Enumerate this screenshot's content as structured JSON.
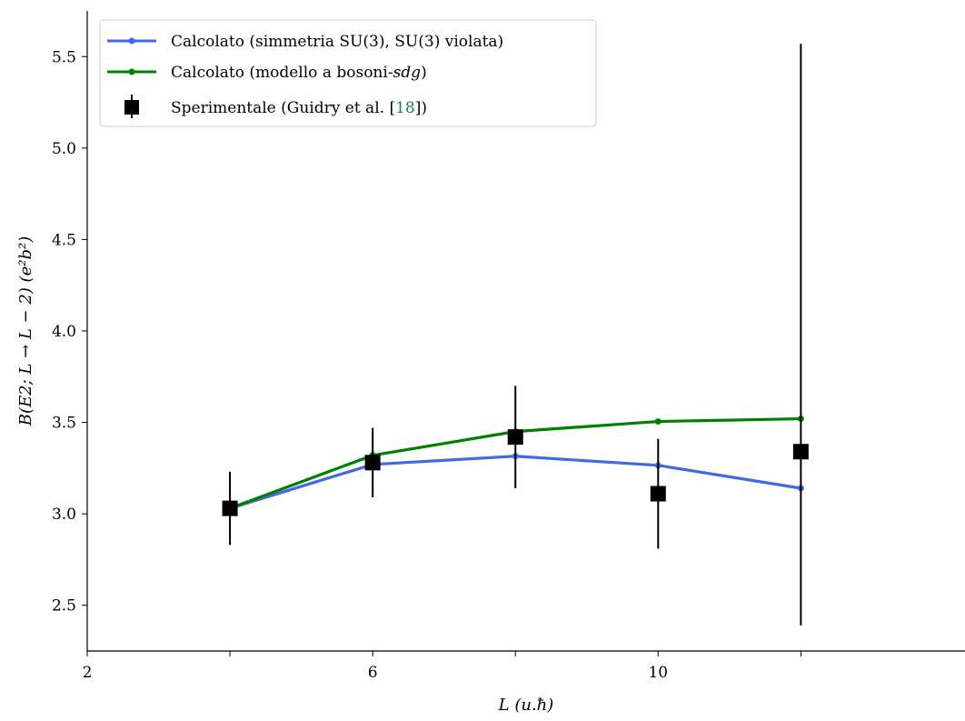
{
  "chart_data": {
    "type": "line",
    "xlabel": "L (u.ħ)",
    "ylabel": "B(E2; L → L − 2) (e²b²)",
    "xlim": [
      2,
      14.3
    ],
    "ylim": [
      2.25,
      5.75
    ],
    "x_ticks": [
      2,
      4,
      6,
      8,
      10,
      12
    ],
    "x_tick_labels": [
      "2",
      "",
      "6",
      "",
      "10",
      ""
    ],
    "y_ticks": [
      2.5,
      3.0,
      3.5,
      4.0,
      4.5,
      5.0,
      5.5
    ],
    "y_tick_labels": [
      "2.5",
      "3.0",
      "3.5",
      "4.0",
      "4.5",
      "5.0",
      "5.5"
    ],
    "grid": false,
    "legend_position": "top-left",
    "series": [
      {
        "name": "Calcolato (simmetria SU(3), SU(3) violata)",
        "color": "#4169e1",
        "x": [
          4,
          6,
          8,
          10,
          12
        ],
        "y": [
          3.03,
          3.27,
          3.315,
          3.265,
          3.14
        ]
      },
      {
        "name": "Calcolato (modello a bosoni-sdg)",
        "color": "#008000",
        "x": [
          4,
          6,
          8,
          10,
          12
        ],
        "y": [
          3.03,
          3.32,
          3.45,
          3.505,
          3.52
        ]
      }
    ],
    "experimental": {
      "name": "Sperimentale (Guidry et al. [18])",
      "color": "#000000",
      "x": [
        4,
        6,
        8,
        10,
        12
      ],
      "y": [
        3.03,
        3.28,
        3.42,
        3.11,
        3.34
      ],
      "err_low": [
        2.83,
        3.09,
        3.14,
        2.81,
        2.39
      ],
      "err_high": [
        3.23,
        3.47,
        3.7,
        3.41,
        5.57
      ]
    },
    "legend": {
      "entry1": "Calcolato (simmetria SU(3), SU(3) violata)",
      "entry2_prefix": "Calcolato (modello a bosoni-",
      "entry2_italic": "sdg",
      "entry2_suffix": ")",
      "entry3_prefix": "Sperimentale (Guidry et al. [",
      "entry3_ref": "18",
      "entry3_suffix": "])"
    }
  }
}
